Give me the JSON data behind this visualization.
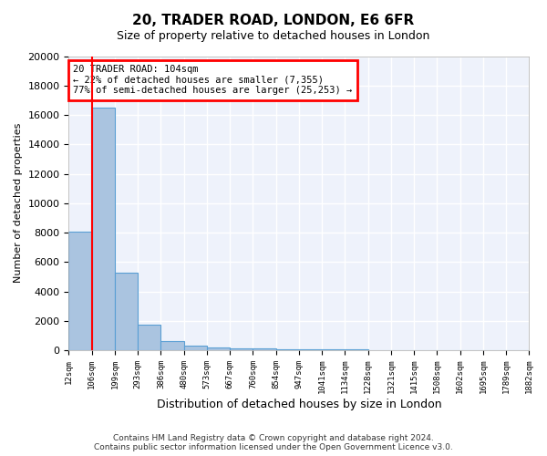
{
  "title": "20, TRADER ROAD, LONDON, E6 6FR",
  "subtitle": "Size of property relative to detached houses in London",
  "xlabel": "Distribution of detached houses by size in London",
  "ylabel": "Number of detached properties",
  "bar_values": [
    8050,
    16500,
    5300,
    1750,
    620,
    340,
    220,
    160,
    120,
    80,
    65,
    50,
    40,
    30,
    25,
    20,
    15,
    12,
    10,
    8
  ],
  "bar_labels": [
    "12sqm",
    "106sqm",
    "199sqm",
    "293sqm",
    "386sqm",
    "480sqm",
    "573sqm",
    "667sqm",
    "760sqm",
    "854sqm",
    "947sqm",
    "1041sqm",
    "1134sqm",
    "1228sqm",
    "1321sqm",
    "1415sqm",
    "1508sqm",
    "1602sqm",
    "1695sqm",
    "1789sqm"
  ],
  "extra_tick": "1882sqm",
  "bar_color": "#aac4e0",
  "bar_edge_color": "#5a9fd4",
  "red_line_x": 0.5,
  "annotation_text": "20 TRADER ROAD: 104sqm\n← 22% of detached houses are smaller (7,355)\n77% of semi-detached houses are larger (25,253) →",
  "ylim": [
    0,
    20000
  ],
  "yticks": [
    0,
    2000,
    4000,
    6000,
    8000,
    10000,
    12000,
    14000,
    16000,
    18000,
    20000
  ],
  "background_color": "#eef2fb",
  "grid_color": "white",
  "footer_line1": "Contains HM Land Registry data © Crown copyright and database right 2024.",
  "footer_line2": "Contains public sector information licensed under the Open Government Licence v3.0."
}
